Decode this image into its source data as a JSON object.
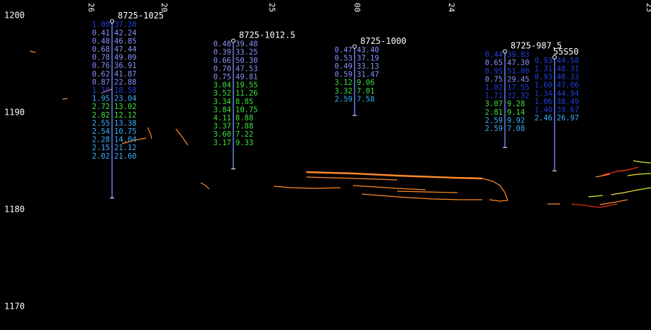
{
  "chart_data": {
    "type": "scatter",
    "title": "",
    "xlabel": "",
    "ylabel": "",
    "ylim": [
      1167.5,
      1201.5
    ],
    "yticks": [
      "1200",
      "1190",
      "1180",
      "1170"
    ],
    "top_tick_labels": [
      "26",
      "20",
      "25",
      "00",
      "24",
      "",
      "23"
    ],
    "colors": {
      "background": "#000000",
      "label": "#ffffff",
      "blue": "#1f3fe0",
      "slate": "#8a8fff",
      "sky": "#39b0ff",
      "green": "#3ce23c",
      "orange": "#ff8a2a",
      "red": "#e02a1a",
      "yellow": "#e8e82a"
    },
    "wells": [
      {
        "name": "8725-1025",
        "top": 1199.3,
        "bottom": 1181.1,
        "rows": [
          {
            "l": "1.00",
            "r": "37.38",
            "lc": "blue",
            "rc": "blue"
          },
          {
            "l": "0.41",
            "r": "42.24",
            "lc": "slate",
            "rc": "slate"
          },
          {
            "l": "0.48",
            "r": "46.85",
            "lc": "slate",
            "rc": "slate"
          },
          {
            "l": "0.68",
            "r": "47.44",
            "lc": "slate",
            "rc": "slate"
          },
          {
            "l": "0.78",
            "r": "49.09",
            "lc": "slate",
            "rc": "slate"
          },
          {
            "l": "0.76",
            "r": "36.91",
            "lc": "slate",
            "rc": "slate"
          },
          {
            "l": "0.62",
            "r": "41.87",
            "lc": "slate",
            "rc": "slate"
          },
          {
            "l": "0.87",
            "r": "22.88",
            "lc": "slate",
            "rc": "slate"
          },
          {
            "l": "1.10",
            "r": "18.58",
            "lc": "blue",
            "rc": "blue"
          },
          {
            "l": "1.95",
            "r": "23.04",
            "lc": "sky",
            "rc": "sky"
          },
          {
            "l": "2.72",
            "r": "13.02",
            "lc": "green",
            "rc": "green"
          },
          {
            "l": "2.82",
            "r": "12.12",
            "lc": "green",
            "rc": "green"
          },
          {
            "l": "2.55",
            "r": "13.38",
            "lc": "sky",
            "rc": "sky"
          },
          {
            "l": "2.54",
            "r": "10.75",
            "lc": "sky",
            "rc": "sky"
          },
          {
            "l": "2.28",
            "r": "14.04",
            "lc": "sky",
            "rc": "sky"
          },
          {
            "l": "2.15",
            "r": "21.12",
            "lc": "sky",
            "rc": "sky"
          },
          {
            "l": "2.02",
            "r": "21.60",
            "lc": "sky",
            "rc": "sky"
          }
        ]
      },
      {
        "name": "8725-1012.5",
        "top": 1197.3,
        "bottom": 1184.1,
        "rows": [
          {
            "l": "0.48",
            "r": "39.48",
            "lc": "slate",
            "rc": "slate"
          },
          {
            "l": "0.39",
            "r": "33.25",
            "lc": "slate",
            "rc": "slate"
          },
          {
            "l": "0.66",
            "r": "50.30",
            "lc": "slate",
            "rc": "slate"
          },
          {
            "l": "0.70",
            "r": "47.53",
            "lc": "slate",
            "rc": "slate"
          },
          {
            "l": "0.75",
            "r": "49.81",
            "lc": "slate",
            "rc": "slate"
          },
          {
            "l": "3.04",
            "r": "19.55",
            "lc": "green",
            "rc": "green"
          },
          {
            "l": "3.52",
            "r": "11.26",
            "lc": "green",
            "rc": "green"
          },
          {
            "l": "3.34",
            "r": "8.85",
            "lc": "green",
            "rc": "green"
          },
          {
            "l": "3.84",
            "r": "10.75",
            "lc": "green",
            "rc": "green"
          },
          {
            "l": "4.11",
            "r": "8.88",
            "lc": "green",
            "rc": "green"
          },
          {
            "l": "3.37",
            "r": "7.88",
            "lc": "green",
            "rc": "green"
          },
          {
            "l": "3.60",
            "r": "7.22",
            "lc": "green",
            "rc": "green"
          },
          {
            "l": "3.17",
            "r": "9.33",
            "lc": "green",
            "rc": "green"
          }
        ]
      },
      {
        "name": "8725-1000",
        "top": 1196.7,
        "bottom": 1189.6,
        "rows": [
          {
            "l": "0.47",
            "r": "43.40",
            "lc": "slate",
            "rc": "slate"
          },
          {
            "l": "0.53",
            "r": "37.19",
            "lc": "slate",
            "rc": "slate"
          },
          {
            "l": "0.49",
            "r": "33.13",
            "lc": "slate",
            "rc": "slate"
          },
          {
            "l": "0.59",
            "r": "31.47",
            "lc": "slate",
            "rc": "slate"
          },
          {
            "l": "3.12",
            "r": "9.06",
            "lc": "green",
            "rc": "green"
          },
          {
            "l": "3.32",
            "r": "7.01",
            "lc": "green",
            "rc": "green"
          },
          {
            "l": "2.59",
            "r": "7.58",
            "lc": "sky",
            "rc": "sky"
          }
        ]
      },
      {
        "name": "8725-987.5",
        "top": 1196.2,
        "bottom": 1186.3,
        "rows": [
          {
            "l": "0.44",
            "r": "39.83",
            "lc": "blue",
            "rc": "blue"
          },
          {
            "l": "0.65",
            "r": "47.30",
            "lc": "slate",
            "rc": "slate"
          },
          {
            "l": "0.95",
            "r": "51.00",
            "lc": "blue",
            "rc": "blue"
          },
          {
            "l": "0.75",
            "r": "29.45",
            "lc": "slate",
            "rc": "slate"
          },
          {
            "l": "1.02",
            "r": "17.55",
            "lc": "blue",
            "rc": "blue"
          },
          {
            "l": "1.71",
            "r": "32.32",
            "lc": "blue",
            "rc": "blue"
          },
          {
            "l": "3.07",
            "r": "9.28",
            "lc": "green",
            "rc": "green"
          },
          {
            "l": "2.81",
            "r": "9.14",
            "lc": "green",
            "rc": "green"
          },
          {
            "l": "2.59",
            "r": "9.92",
            "lc": "sky",
            "rc": "sky"
          },
          {
            "l": "2.59",
            "r": "7.08",
            "lc": "sky",
            "rc": "sky"
          }
        ]
      },
      {
        "name": "55S50",
        "top": 1195.6,
        "bottom": 1183.9,
        "rows": [
          {
            "l": "0.93",
            "r": "44.58",
            "lc": "blue",
            "rc": "blue"
          },
          {
            "l": "1.31",
            "r": "48.31",
            "lc": "blue",
            "rc": "blue"
          },
          {
            "l": "0.93",
            "r": "40.33",
            "lc": "blue",
            "rc": "blue"
          },
          {
            "l": "1.60",
            "r": "47.06",
            "lc": "blue",
            "rc": "blue"
          },
          {
            "l": "1.34",
            "r": "44.94",
            "lc": "blue",
            "rc": "blue"
          },
          {
            "l": "1.06",
            "r": "38.49",
            "lc": "blue",
            "rc": "blue"
          },
          {
            "l": "1.40",
            "r": "39.67",
            "lc": "blue",
            "rc": "blue"
          },
          {
            "l": "2.46",
            "r": "26.97",
            "lc": "sky",
            "rc": "sky"
          }
        ]
      }
    ],
    "horizon_traces": [
      {
        "color": "orange",
        "points": [
          [
            1196.2
          ],
          [
            1196.1
          ]
        ]
      },
      {
        "color": "orange",
        "points": [
          [
            1193.9
          ],
          [
            1193.8
          ]
        ]
      },
      {
        "color": "orange",
        "points": [
          [
            1193.1
          ],
          [
            1193.0
          ]
        ]
      },
      {
        "color": "orange",
        "points": [
          [
            1189.7
          ],
          [
            1189.6
          ]
        ]
      }
    ]
  }
}
